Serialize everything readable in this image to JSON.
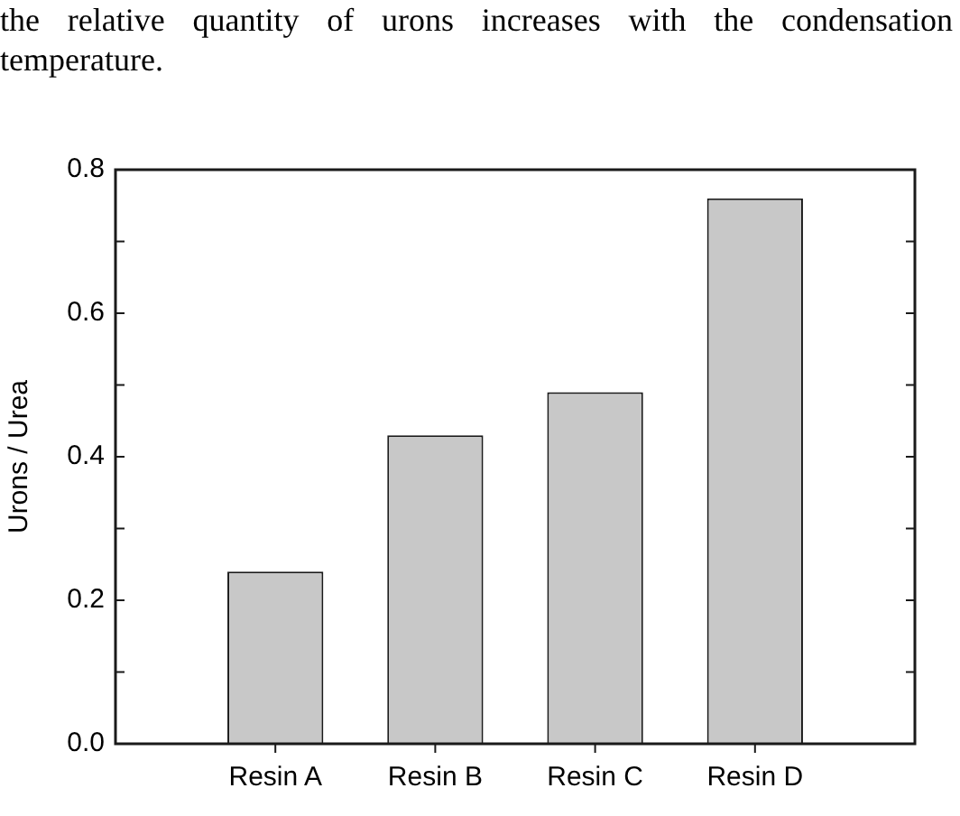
{
  "chart_data": {
    "type": "bar",
    "ylabel": "Urons / Urea",
    "annotations": [
      "the relative quantity of urons increases with the condensation temperature."
    ],
    "categories": [
      "Resin A",
      "Resin B",
      "Resin C",
      "Resin D"
    ],
    "values": [
      0.24,
      0.43,
      0.49,
      0.76
    ],
    "color": "#c8c8c8",
    "ylim": [
      0,
      0.8
    ],
    "yticks": [
      {
        "value": 0,
        "label": "0.0"
      },
      {
        "value": 0.1,
        "label": null
      },
      0.2,
      {
        "value": 0.3,
        "label": null
      },
      0.4,
      {
        "value": 0.5,
        "label": null
      },
      0.6,
      {
        "value": 0.7,
        "label": null
      },
      0.8
    ],
    "grid": false,
    "legend": false
  }
}
